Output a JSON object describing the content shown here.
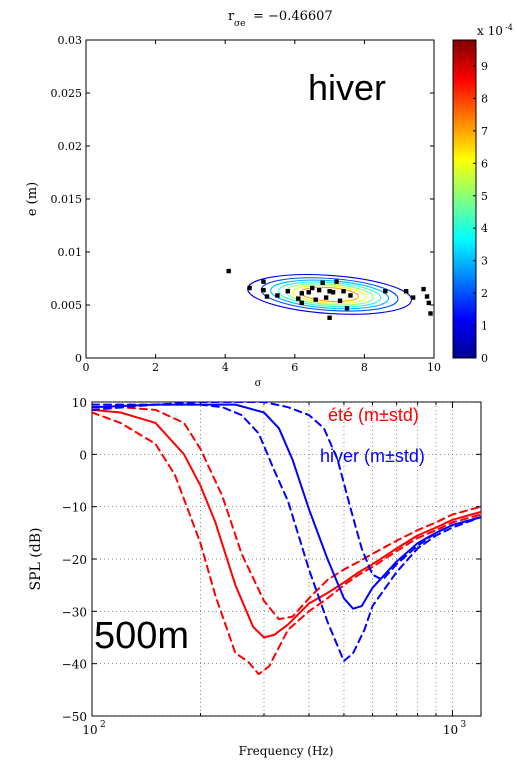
{
  "chart_data": [
    {
      "type": "scatter",
      "panel": "top",
      "title": "r",
      "title_subscript": "σe",
      "title_value": "= −0.46607",
      "annotation": "hiver",
      "xlim": [
        0,
        10
      ],
      "ylim": [
        0,
        0.03
      ],
      "x_ticks": [
        "0",
        "2",
        "4",
        "6",
        "8",
        "10"
      ],
      "x_tick_values": [
        0,
        2,
        4,
        6,
        8,
        10
      ],
      "y_ticks": [
        "0",
        "0.005",
        "0.01",
        "0.015",
        "0.02",
        "0.025",
        "0.03"
      ],
      "y_tick_values": [
        0,
        0.005,
        0.01,
        0.015,
        0.02,
        0.025,
        0.03
      ],
      "xlabel": "σ",
      "ylabel": "e (m)",
      "colorbar": {
        "ticks": [
          "0",
          "1",
          "2",
          "3",
          "4",
          "5",
          "6",
          "7",
          "8",
          "9"
        ],
        "tick_values": [
          0,
          1,
          2,
          3,
          4,
          5,
          6,
          7,
          8,
          9
        ],
        "range": [
          0,
          9.8
        ],
        "exponent_label": "x 10",
        "exponent_sup": "-4",
        "colormap": [
          "#00008f",
          "#0000ff",
          "#0080ff",
          "#00ffff",
          "#80ff80",
          "#ffff00",
          "#ff8000",
          "#ff0000",
          "#800000"
        ]
      },
      "contour_center": [
        7.0,
        0.006
      ],
      "contour_levels": [
        1,
        2,
        3,
        4,
        5,
        6,
        7
      ],
      "points": [
        [
          4.1,
          0.0082
        ],
        [
          4.7,
          0.0066
        ],
        [
          5.1,
          0.0072
        ],
        [
          5.1,
          0.0064
        ],
        [
          5.2,
          0.0058
        ],
        [
          5.5,
          0.0059
        ],
        [
          5.8,
          0.0063
        ],
        [
          6.1,
          0.0056
        ],
        [
          6.2,
          0.0061
        ],
        [
          6.2,
          0.0052
        ],
        [
          6.4,
          0.0062
        ],
        [
          6.5,
          0.0066
        ],
        [
          6.6,
          0.0055
        ],
        [
          6.7,
          0.0064
        ],
        [
          6.8,
          0.0071
        ],
        [
          6.9,
          0.0057
        ],
        [
          7.0,
          0.0038
        ],
        [
          7.0,
          0.0063
        ],
        [
          7.1,
          0.0062
        ],
        [
          7.2,
          0.0072
        ],
        [
          7.3,
          0.0054
        ],
        [
          7.4,
          0.0063
        ],
        [
          7.5,
          0.0047
        ],
        [
          7.6,
          0.0059
        ],
        [
          8.6,
          0.0063
        ],
        [
          9.2,
          0.0063
        ],
        [
          9.4,
          0.0057
        ],
        [
          9.7,
          0.0065
        ],
        [
          9.8,
          0.0058
        ],
        [
          9.85,
          0.0052
        ],
        [
          9.9,
          0.0042
        ]
      ]
    },
    {
      "type": "line",
      "panel": "bottom",
      "annotation": "500m",
      "xlabel": "Frequency (Hz)",
      "ylabel": "SPL (dB)",
      "xscale": "log",
      "xlim": [
        100,
        1200
      ],
      "ylim": [
        -50,
        10
      ],
      "x_ticks": [
        {
          "base": "10",
          "exp": "2",
          "value": 100
        },
        {
          "base": "10",
          "exp": "3",
          "value": 1000
        }
      ],
      "y_ticks": [
        "10",
        "0",
        "−10",
        "−20",
        "−30",
        "−40",
        "−50"
      ],
      "y_tick_values": [
        10,
        0,
        -10,
        -20,
        -30,
        -40,
        -50
      ],
      "grid": true,
      "legend": [
        {
          "label": "été (m±std)",
          "color": "#ff0000"
        },
        {
          "label": "hiver (m±std)",
          "color": "#0000ff"
        }
      ],
      "series": [
        {
          "group": "été",
          "stat": "m",
          "color": "#ff0000",
          "dash": false,
          "x": [
            100,
            120,
            150,
            180,
            200,
            220,
            250,
            280,
            300,
            320,
            350,
            400,
            450,
            500,
            550,
            600,
            700,
            800,
            900,
            1000,
            1200
          ],
          "y": [
            8.5,
            8,
            6,
            0,
            -6,
            -13,
            -25,
            -33,
            -35,
            -34.5,
            -32.5,
            -28.5,
            -26.5,
            -24.5,
            -22.5,
            -21,
            -18,
            -15.5,
            -14,
            -12.5,
            -11
          ]
        },
        {
          "group": "été",
          "stat": "m-std",
          "color": "#ff0000",
          "dash": true,
          "x": [
            100,
            120,
            150,
            170,
            200,
            220,
            250,
            270,
            290,
            310,
            350,
            400,
            450,
            500,
            550,
            600,
            700,
            800,
            900,
            1000,
            1200
          ],
          "y": [
            8,
            6,
            2,
            -4,
            -17,
            -27,
            -38,
            -39.5,
            -42,
            -40.5,
            -33.5,
            -30,
            -27.5,
            -25,
            -23,
            -21.5,
            -18.5,
            -16,
            -14.5,
            -13,
            -11.5
          ]
        },
        {
          "group": "été",
          "stat": "m+std",
          "color": "#ff0000",
          "dash": true,
          "x": [
            100,
            120,
            150,
            180,
            200,
            230,
            260,
            300,
            330,
            360,
            400,
            450,
            500,
            550,
            600,
            700,
            800,
            900,
            1000,
            1200
          ],
          "y": [
            9,
            9,
            8.5,
            6,
            1,
            -8,
            -19,
            -28,
            -31.5,
            -31,
            -27.5,
            -24,
            -22,
            -20.5,
            -19,
            -16.5,
            -14.5,
            -13,
            -11.5,
            -10
          ]
        },
        {
          "group": "hiver",
          "stat": "m",
          "color": "#0000ff",
          "dash": false,
          "x": [
            100,
            150,
            200,
            250,
            300,
            330,
            360,
            400,
            450,
            500,
            530,
            560,
            600,
            700,
            800,
            900,
            1000,
            1200
          ],
          "y": [
            9,
            9.5,
            9.5,
            9.5,
            8,
            5,
            -1,
            -10.5,
            -20,
            -27.5,
            -29.5,
            -29,
            -25.5,
            -20.5,
            -17,
            -15,
            -13.5,
            -12
          ]
        },
        {
          "group": "hiver",
          "stat": "m-std",
          "color": "#0000ff",
          "dash": true,
          "x": [
            100,
            150,
            200,
            230,
            260,
            290,
            320,
            350,
            400,
            450,
            500,
            530,
            570,
            600,
            700,
            800,
            900,
            1000,
            1200
          ],
          "y": [
            9.5,
            9.5,
            9.5,
            9,
            7.5,
            4,
            -3,
            -9,
            -22,
            -32,
            -39.5,
            -38,
            -33.5,
            -29,
            -22.5,
            -18,
            -15.5,
            -14,
            -12
          ]
        },
        {
          "group": "hiver",
          "stat": "m+std",
          "color": "#0000ff",
          "dash": true,
          "x": [
            100,
            150,
            200,
            250,
            300,
            350,
            400,
            440,
            480,
            520,
            560,
            600,
            640,
            700,
            800,
            900,
            1000,
            1200
          ],
          "y": [
            8.5,
            9.5,
            10,
            10,
            10,
            9,
            7.5,
            5,
            -1,
            -10,
            -18,
            -23,
            -24,
            -21,
            -17.5,
            -15,
            -13.5,
            -12
          ]
        }
      ]
    }
  ]
}
